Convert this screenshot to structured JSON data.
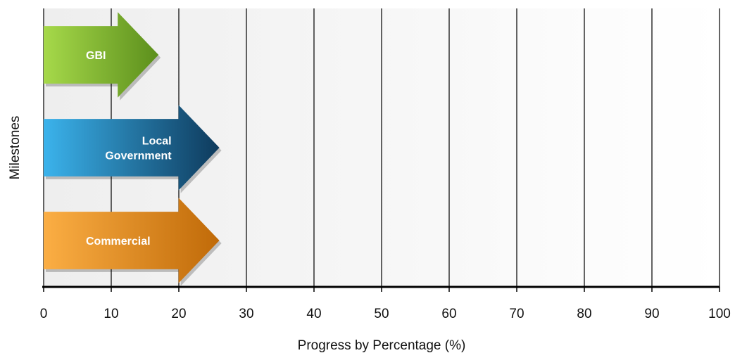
{
  "chart_data": {
    "type": "bar",
    "orientation": "horizontal",
    "xlabel": "Progress by Percentage (%)",
    "ylabel": "Milestones",
    "xlim": [
      0,
      100
    ],
    "x_ticks": [
      0,
      10,
      20,
      30,
      40,
      50,
      60,
      70,
      80,
      90,
      100
    ],
    "grid": true,
    "series": [
      {
        "name": "GBI",
        "label_lines": [
          "GBI"
        ],
        "value": 17,
        "color_start": "#a6d94a",
        "color_end": "#5c8f1c"
      },
      {
        "name": "Local Government",
        "label_lines": [
          "Local",
          "Government"
        ],
        "value": 26,
        "color_start": "#3bb3ec",
        "color_end": "#0e3a5c"
      },
      {
        "name": "Commercial",
        "label_lines": [
          "Commercial"
        ],
        "value": 26,
        "color_start": "#fbae44",
        "color_end": "#c06a08"
      }
    ]
  }
}
